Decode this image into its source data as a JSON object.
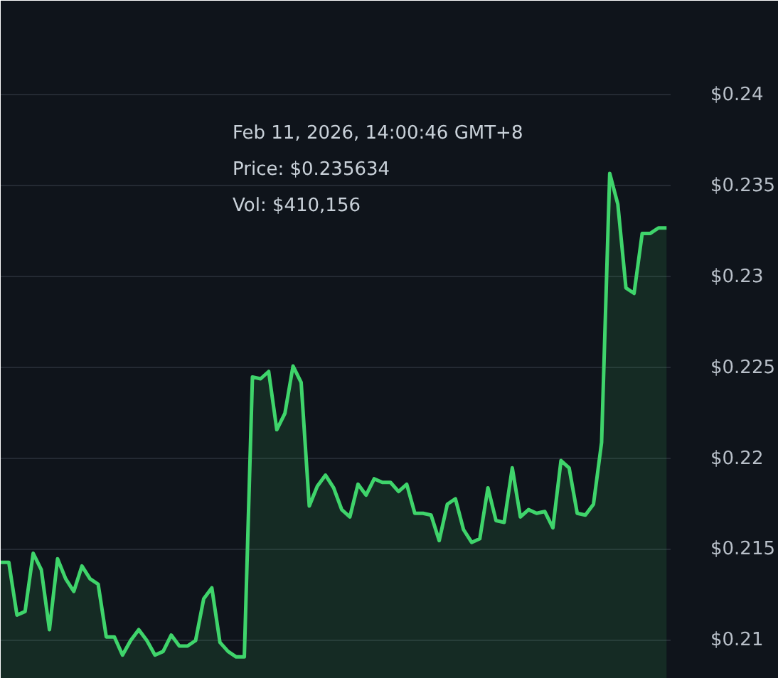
{
  "chart_data": {
    "type": "area",
    "categories": [
      null,
      null,
      null,
      null,
      null,
      null,
      null,
      null,
      null,
      null,
      null,
      null,
      null,
      null,
      null,
      null,
      null,
      null,
      null,
      null,
      null,
      null,
      null,
      null,
      null,
      null,
      null,
      null,
      null,
      null,
      null,
      null,
      null,
      null,
      null,
      null,
      null,
      null,
      null,
      null,
      null,
      null,
      null,
      null,
      null,
      null,
      null,
      null,
      null,
      null,
      null,
      null,
      null,
      null,
      null,
      null,
      null,
      null,
      null,
      null,
      null,
      null,
      null,
      null,
      null,
      null,
      null,
      null,
      null,
      null,
      null,
      null,
      null,
      null,
      null,
      null,
      null,
      null,
      null,
      null,
      null,
      null,
      null
    ],
    "series": [
      {
        "color": "#3fd46b",
        "values": [
          0.2143,
          0.2143,
          0.2114,
          0.2116,
          0.2148,
          0.2139,
          0.2106,
          0.2145,
          0.2134,
          0.2127,
          0.2141,
          0.2134,
          0.2131,
          0.2102,
          0.2102,
          0.2092,
          0.21,
          0.2106,
          0.21,
          0.2092,
          0.2094,
          0.2103,
          0.2097,
          0.2097,
          0.21,
          0.2123,
          0.2129,
          0.2099,
          0.2094,
          0.2091,
          0.2091,
          0.2245,
          0.2244,
          0.2248,
          0.2216,
          0.2225,
          0.2251,
          0.2242,
          0.2174,
          0.2185,
          0.2191,
          0.2184,
          0.2172,
          0.2168,
          0.2186,
          0.218,
          0.2189,
          0.2187,
          0.2187,
          0.2182,
          0.2186,
          0.217,
          0.217,
          0.2169,
          0.2155,
          0.2175,
          0.2178,
          0.2161,
          0.2154,
          0.2156,
          0.2184,
          0.2166,
          0.2165,
          0.2195,
          0.2168,
          0.2172,
          0.217,
          0.2171,
          0.2162,
          0.2199,
          0.2195,
          0.217,
          0.2169,
          0.2175,
          0.2209,
          0.2357,
          0.234,
          0.2294,
          0.2291,
          0.2324,
          0.2324,
          0.2327,
          0.2327
        ]
      }
    ],
    "ylim": [
      0.2079,
      0.2452
    ],
    "yticks": [
      {
        "value": 0.21,
        "label": "$0.21"
      },
      {
        "value": 0.215,
        "label": "$0.215"
      },
      {
        "value": 0.22,
        "label": "$0.22"
      },
      {
        "value": 0.225,
        "label": "$0.225"
      },
      {
        "value": 0.23,
        "label": "$0.23"
      },
      {
        "value": 0.235,
        "label": "$0.235"
      },
      {
        "value": 0.24,
        "label": "$0.24"
      }
    ],
    "grid": "y",
    "annotations": [
      "Feb 11, 2026, 14:00:46 GMT+8",
      "Price: $0.235634",
      "Vol: $410,156"
    ]
  }
}
